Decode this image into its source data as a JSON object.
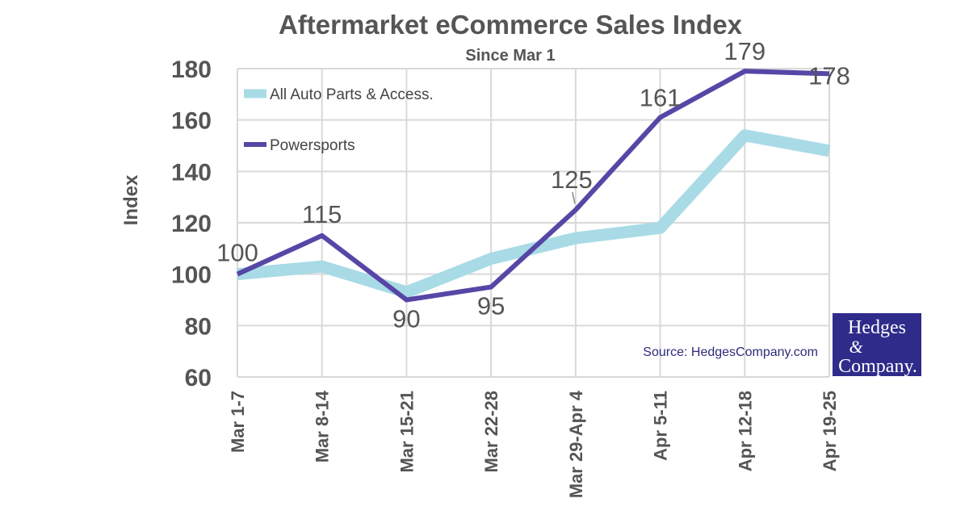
{
  "chart_data": {
    "type": "line",
    "title": "Aftermarket eCommerce Sales Index",
    "subtitle": "Since Mar 1",
    "ylabel": "Index",
    "xlabel": "",
    "ylim": [
      60,
      180
    ],
    "yticks": [
      60,
      80,
      100,
      120,
      140,
      160,
      180
    ],
    "categories": [
      "Mar 1-7",
      "Mar 8-14",
      "Mar 15-21",
      "Mar 22-28",
      "Mar 29-Apr 4",
      "Apr 5-11",
      "Apr 12-18",
      "Apr 19-25"
    ],
    "grid": true,
    "legend_position": "top-left",
    "series": [
      {
        "name": "All Auto Parts & Access.",
        "color": "#a8dbe6",
        "values": [
          100,
          103,
          93,
          106,
          114,
          118,
          154,
          148
        ],
        "show_labels": false
      },
      {
        "name": "Powersports",
        "color": "#5746a6",
        "values": [
          100,
          115,
          90,
          95,
          125,
          161,
          179,
          178
        ],
        "show_labels": true
      }
    ]
  },
  "source_text": "Source: HedgesCompany.com",
  "logo": {
    "line1": "Hedges",
    "line2": "&",
    "line3": "Company.",
    "background": "#2e2b8a"
  }
}
